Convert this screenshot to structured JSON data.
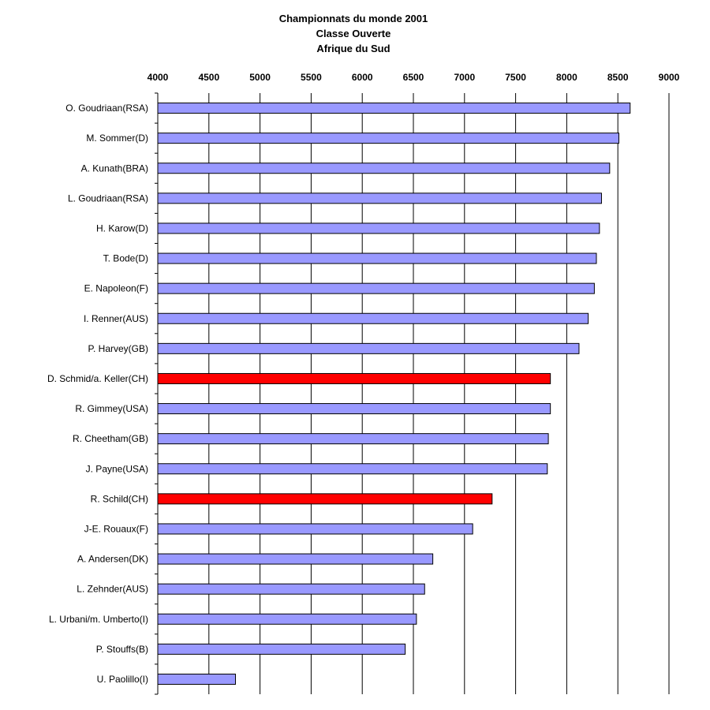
{
  "chart_data": {
    "type": "bar",
    "orientation": "horizontal",
    "title_lines": [
      "Championnats du monde 2001",
      "Classe Ouverte",
      "Afrique du Sud"
    ],
    "xlim": [
      4000,
      9000
    ],
    "x_ticks": [
      4000,
      4500,
      5000,
      5500,
      6000,
      6500,
      7000,
      7500,
      8000,
      8500,
      9000
    ],
    "axis_position": "top",
    "grid": "vertical",
    "colors": {
      "default": "#9999ff",
      "highlight": "#ff0000"
    },
    "categories": [
      "O. Goudriaan(RSA)",
      "M. Sommer(D)",
      "A. Kunath(BRA)",
      "L. Goudriaan(RSA)",
      "H. Karow(D)",
      "T. Bode(D)",
      "E. Napoleon(F)",
      "I. Renner(AUS)",
      "P. Harvey(GB)",
      "D. Schmid/a. Keller(CH)",
      "R. Gimmey(USA)",
      "R. Cheetham(GB)",
      "J. Payne(USA)",
      "R. Schild(CH)",
      "J-E. Rouaux(F)",
      "A. Andersen(DK)",
      "L. Zehnder(AUS)",
      "L. Urbani/m. Umberto(I)",
      "P. Stouffs(B)",
      "U. Paolillo(I)"
    ],
    "values": [
      8620,
      8510,
      8420,
      8340,
      8320,
      8290,
      8270,
      8210,
      8120,
      7840,
      7840,
      7820,
      7810,
      7270,
      7080,
      6690,
      6610,
      6530,
      6420,
      4760
    ],
    "highlighted": [
      false,
      false,
      false,
      false,
      false,
      false,
      false,
      false,
      false,
      true,
      false,
      false,
      false,
      true,
      false,
      false,
      false,
      false,
      false,
      false
    ]
  }
}
